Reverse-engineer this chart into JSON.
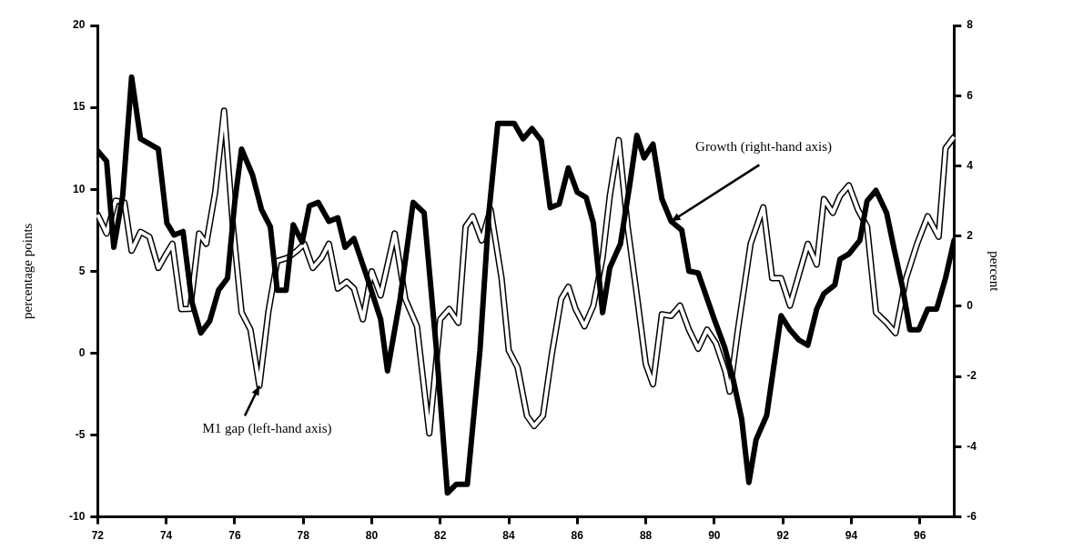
{
  "chart_data": {
    "type": "line",
    "ylabel": "percentage points",
    "y2label": "percent",
    "xlim": [
      72,
      97
    ],
    "xticks": [
      72,
      74,
      76,
      78,
      80,
      82,
      84,
      86,
      88,
      90,
      92,
      94,
      96
    ],
    "ylim": [
      -10,
      20
    ],
    "yticks": [
      -10,
      -5,
      0,
      5,
      10,
      15,
      20
    ],
    "y2lim": [
      -6,
      8
    ],
    "y2ticks": [
      -6,
      -4,
      -2,
      0,
      2,
      4,
      6,
      8
    ],
    "grid": false,
    "legend": false,
    "marker": "none",
    "line_style": "solid",
    "annotations": [
      {
        "text": "Growth (right-hand axis)",
        "x": 88.74,
        "y": 8.04
      },
      {
        "text": "M1 gap (left-hand axis)",
        "x": 76.72,
        "y": -2.0
      }
    ],
    "series": [
      {
        "color": "#000000",
        "axis": "y",
        "x": [
          72.0,
          72.26,
          72.52,
          72.78,
          72.99,
          73.25,
          73.51,
          73.77,
          73.97,
          74.18,
          74.44,
          74.7,
          74.96,
          75.17,
          75.43,
          75.69,
          75.95,
          76.2,
          76.46,
          76.72,
          76.98,
          77.24,
          77.56,
          77.82,
          78.03,
          78.28,
          78.54,
          78.75,
          79.01,
          79.27,
          79.48,
          79.74,
          80.0,
          80.26,
          80.67,
          80.98,
          81.32,
          81.68,
          82.0,
          82.26,
          82.53,
          82.74,
          82.95,
          83.21,
          83.47,
          83.79,
          84.0,
          84.26,
          84.53,
          84.74,
          85.0,
          85.26,
          85.53,
          85.74,
          85.95,
          86.21,
          86.47,
          86.74,
          86.95,
          87.21,
          87.47,
          87.74,
          88.0,
          88.21,
          88.47,
          88.74,
          89.0,
          89.26,
          89.53,
          89.79,
          90.05,
          90.32,
          90.45,
          90.69,
          91.06,
          91.43,
          91.69,
          91.95,
          92.21,
          92.47,
          92.73,
          92.99,
          93.2,
          93.46,
          93.67,
          93.93,
          94.19,
          94.46,
          94.72,
          95.03,
          95.29,
          95.6,
          95.92,
          96.23,
          96.55,
          96.75,
          97.0
        ],
        "values": [
          8.45,
          7.3,
          9.3,
          9.2,
          6.25,
          7.4,
          7.1,
          5.2,
          5.94,
          6.67,
          2.69,
          2.7,
          7.3,
          6.67,
          9.82,
          14.8,
          7.7,
          2.48,
          1.43,
          -2.0,
          2.48,
          5.62,
          5.83,
          6.25,
          6.67,
          5.2,
          5.83,
          6.67,
          3.94,
          4.36,
          3.94,
          2.06,
          4.99,
          3.52,
          7.3,
          3.3,
          1.64,
          -4.9,
          2.06,
          2.69,
          1.85,
          7.72,
          8.35,
          6.88,
          8.77,
          4.57,
          0.17,
          -0.88,
          -3.82,
          -4.45,
          -3.82,
          -0.04,
          3.31,
          4.05,
          2.69,
          1.64,
          2.9,
          5.83,
          9.6,
          13.0,
          7.72,
          3.52,
          -0.67,
          -1.9,
          2.37,
          2.27,
          2.9,
          1.43,
          0.27,
          1.43,
          0.59,
          -1.09,
          -2.35,
          1.43,
          6.67,
          8.9,
          4.57,
          4.57,
          2.9,
          4.78,
          6.67,
          5.41,
          9.4,
          8.56,
          9.6,
          10.24,
          8.77,
          7.72,
          2.48,
          1.85,
          1.22,
          4.57,
          6.67,
          8.35,
          7.1,
          12.5,
          13.2
        ]
      },
      {
        "color": "#000000",
        "axis": "y2",
        "x": [
          72.0,
          72.26,
          72.47,
          72.73,
          72.99,
          73.25,
          73.77,
          74.02,
          74.23,
          74.49,
          74.75,
          75.01,
          75.27,
          75.53,
          75.79,
          76.0,
          76.2,
          76.52,
          76.78,
          77.04,
          77.24,
          77.5,
          77.71,
          77.97,
          78.18,
          78.44,
          78.75,
          79.01,
          79.22,
          79.48,
          79.84,
          80.26,
          80.46,
          80.83,
          81.21,
          81.53,
          81.89,
          82.21,
          82.47,
          82.79,
          83.16,
          83.42,
          83.68,
          83.89,
          84.16,
          84.42,
          84.68,
          84.95,
          85.21,
          85.47,
          85.74,
          86.0,
          86.26,
          86.47,
          86.74,
          86.95,
          87.26,
          87.53,
          87.74,
          87.95,
          88.21,
          88.47,
          88.74,
          89.05,
          89.26,
          89.53,
          90.0,
          90.3,
          90.54,
          90.8,
          91.01,
          91.22,
          91.53,
          91.95,
          92.21,
          92.47,
          92.73,
          92.99,
          93.2,
          93.52,
          93.67,
          93.93,
          94.25,
          94.46,
          94.72,
          95.03,
          95.24,
          95.5,
          95.71,
          95.97,
          96.23,
          96.49,
          96.75,
          97.0
        ],
        "values": [
          4.43,
          4.13,
          1.68,
          3.15,
          6.53,
          4.77,
          4.48,
          2.37,
          2.03,
          2.13,
          0.12,
          -0.76,
          -0.42,
          0.46,
          0.8,
          2.96,
          4.48,
          3.74,
          2.76,
          2.27,
          0.46,
          0.46,
          2.32,
          1.83,
          2.86,
          2.96,
          2.42,
          2.52,
          1.68,
          1.93,
          0.9,
          -0.37,
          -1.84,
          0.22,
          2.96,
          2.66,
          -1.25,
          -5.32,
          -5.07,
          -5.07,
          -1.25,
          2.66,
          5.21,
          5.21,
          5.21,
          4.77,
          5.06,
          4.72,
          2.81,
          2.91,
          3.94,
          3.25,
          3.1,
          2.37,
          -0.18,
          1.1,
          1.78,
          3.45,
          4.87,
          4.23,
          4.62,
          3.06,
          2.42,
          2.17,
          1.0,
          0.95,
          -0.37,
          -1.16,
          -2.04,
          -3.21,
          -5.02,
          -3.8,
          -3.11,
          -0.27,
          -0.67,
          -0.96,
          -1.11,
          -0.08,
          0.36,
          0.61,
          1.34,
          1.49,
          1.88,
          3.0,
          3.3,
          2.66,
          1.68,
          0.51,
          -0.67,
          -0.67,
          -0.08,
          -0.08,
          0.8,
          1.88
        ]
      }
    ]
  }
}
